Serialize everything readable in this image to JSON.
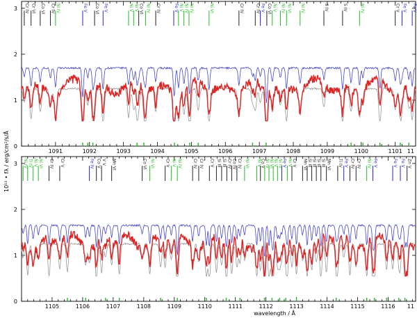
{
  "figure": {
    "ylabel": "10¹¹ • fλ / erg/cm²/s/Å",
    "xlabel": "wavelength / Å"
  },
  "colors": {
    "observed": "#dd2222",
    "model_a": "#4444cc",
    "model_b": "#999999",
    "ion_black": "#222222",
    "ion_blue": "#2222cc",
    "ion_green": "#22bb22",
    "marker_green": "#22bb22"
  },
  "chart_data": [
    {
      "type": "line",
      "panel": "top",
      "xlim": [
        1090.0,
        1101.6
      ],
      "ylim": [
        0,
        3.15
      ],
      "x_ticks": [
        "1091",
        "1092",
        "1093",
        "1094",
        "1095",
        "1096",
        "1097",
        "1098",
        "1099",
        "1100",
        "1101",
        "11"
      ],
      "y_ticks": [
        "0",
        "1",
        "2",
        "3"
      ],
      "series": [
        {
          "role": "model_a",
          "base": 1.7
        },
        {
          "role": "observed",
          "base": 1.3
        },
        {
          "role": "model_b",
          "base": 1.25
        }
      ],
      "ion_labels": [
        {
          "w": 1090.08,
          "t": "Cr IV",
          "c": "black"
        },
        {
          "w": 1090.28,
          "t": "Cr VI",
          "c": "black"
        },
        {
          "w": 1090.55,
          "t": "Co VI",
          "c": "black"
        },
        {
          "w": 1090.85,
          "t": "Cr IV",
          "c": "black"
        },
        {
          "w": 1091.0,
          "t": "Ni IV",
          "c": "green"
        },
        {
          "w": 1091.8,
          "t": "Fe V",
          "c": "blue"
        },
        {
          "w": 1092.15,
          "t": "Co VI",
          "c": "black"
        },
        {
          "w": 1092.4,
          "t": "Fe V",
          "c": "blue"
        },
        {
          "w": 1093.15,
          "t": "Ni V",
          "c": "green"
        },
        {
          "w": 1093.3,
          "t": "Ni V",
          "c": "green"
        },
        {
          "w": 1093.45,
          "t": "Co VI",
          "c": "black"
        },
        {
          "w": 1093.65,
          "t": "Ni IV",
          "c": "green"
        },
        {
          "w": 1093.95,
          "t": "Cr IV",
          "c": "black"
        },
        {
          "w": 1094.48,
          "t": "Fe V",
          "c": "blue"
        },
        {
          "w": 1094.62,
          "t": "Ni V",
          "c": "green"
        },
        {
          "w": 1094.78,
          "t": "Ni IV",
          "c": "green"
        },
        {
          "w": 1094.93,
          "t": "Ni IV",
          "c": "green"
        },
        {
          "w": 1095.52,
          "t": "Ni VI",
          "c": "green"
        },
        {
          "w": 1096.4,
          "t": "Cr IV",
          "c": "black"
        },
        {
          "w": 1096.88,
          "t": "Cr IV",
          "c": "black"
        },
        {
          "w": 1097.03,
          "t": "Fe V",
          "c": "blue"
        },
        {
          "w": 1097.22,
          "t": "Co VI",
          "c": "black"
        },
        {
          "w": 1097.38,
          "t": "Ni V",
          "c": "green"
        },
        {
          "w": 1097.62,
          "t": "Ni IV",
          "c": "green"
        },
        {
          "w": 1097.8,
          "t": "Ni VI",
          "c": "green"
        },
        {
          "w": 1098.2,
          "t": "Ni IV",
          "c": "green"
        },
        {
          "w": 1098.9,
          "t": "S IV",
          "c": "black"
        },
        {
          "w": 1099.45,
          "t": "S IV",
          "c": "black"
        },
        {
          "w": 1099.95,
          "t": "Ni IV",
          "c": "green"
        },
        {
          "w": 1101.0,
          "t": "Cr V",
          "c": "black"
        },
        {
          "w": 1101.2,
          "t": "Fe V",
          "c": "blue"
        },
        {
          "w": 1101.5,
          "t": "Fe V",
          "c": "blue"
        }
      ],
      "markers": [
        1091.8,
        1091.95,
        1092.1,
        1093.4,
        1093.6,
        1094.5,
        1094.95,
        1095.2,
        1096.8,
        1097.2,
        1099.7,
        1100.05,
        1100.55,
        1101.15,
        1101.4
      ]
    },
    {
      "type": "line",
      "panel": "bottom",
      "xlim": [
        1104.0,
        1116.9
      ],
      "ylim": [
        0,
        3.15
      ],
      "x_ticks": [
        "1105",
        "1106",
        "1107",
        "1108",
        "1109",
        "1110",
        "1111",
        "1112",
        "1113",
        "1114",
        "1115",
        "1116",
        "11"
      ],
      "y_ticks": [
        "0",
        "1",
        "2",
        "3"
      ],
      "series": [
        {
          "role": "model_a",
          "base": 1.65
        },
        {
          "role": "observed",
          "base": 1.32
        },
        {
          "role": "model_b",
          "base": 1.25
        }
      ],
      "ion_labels": [
        {
          "w": 1104.05,
          "t": "Ni IV",
          "c": "green"
        },
        {
          "w": 1104.2,
          "t": "Ti IV",
          "c": "green"
        },
        {
          "w": 1104.38,
          "t": "Ni V",
          "c": "green"
        },
        {
          "w": 1104.55,
          "t": "Ni VI",
          "c": "green"
        },
        {
          "w": 1104.9,
          "t": "Cr IV",
          "c": "black"
        },
        {
          "w": 1105.25,
          "t": "Cr V",
          "c": "black"
        },
        {
          "w": 1106.22,
          "t": "Fe IV",
          "c": "blue"
        },
        {
          "w": 1106.45,
          "t": "Co V",
          "c": "black"
        },
        {
          "w": 1106.62,
          "t": "V V",
          "c": "black"
        },
        {
          "w": 1106.95,
          "t": "Mn VI",
          "c": "black"
        },
        {
          "w": 1107.95,
          "t": "Co VI",
          "c": "black"
        },
        {
          "w": 1108.2,
          "t": "Ni VI",
          "c": "green"
        },
        {
          "w": 1108.7,
          "t": "Cr V",
          "c": "black"
        },
        {
          "w": 1108.9,
          "t": "Ni V",
          "c": "green"
        },
        {
          "w": 1109.1,
          "t": "Ni IV",
          "c": "green"
        },
        {
          "w": 1109.6,
          "t": "Cr IV",
          "c": "black"
        },
        {
          "w": 1109.8,
          "t": "Cr IV",
          "c": "black"
        },
        {
          "w": 1110.15,
          "t": "Cr V",
          "c": "black"
        },
        {
          "w": 1110.38,
          "t": "Si III",
          "c": "black"
        },
        {
          "w": 1110.55,
          "t": "Si III",
          "c": "black"
        },
        {
          "w": 1110.72,
          "t": "Cr IV",
          "c": "black"
        },
        {
          "w": 1110.88,
          "t": "Co IV",
          "c": "black"
        },
        {
          "w": 1111.05,
          "t": "Cr IV",
          "c": "black"
        },
        {
          "w": 1111.3,
          "t": "Ni VI",
          "c": "green"
        },
        {
          "w": 1111.7,
          "t": "Ni V",
          "c": "green"
        },
        {
          "w": 1111.82,
          "t": "Co V",
          "c": "black"
        },
        {
          "w": 1111.96,
          "t": "Ni IV",
          "c": "green"
        },
        {
          "w": 1112.1,
          "t": "Ni VI",
          "c": "green"
        },
        {
          "w": 1112.24,
          "t": "Ni V",
          "c": "green"
        },
        {
          "w": 1112.38,
          "t": "Ni IV",
          "c": "green"
        },
        {
          "w": 1112.52,
          "t": "Fe V",
          "c": "blue"
        },
        {
          "w": 1112.7,
          "t": "Ni V",
          "c": "green"
        },
        {
          "w": 1112.85,
          "t": "Cr V",
          "c": "black"
        },
        {
          "w": 1113.2,
          "t": "Mn VI",
          "c": "black"
        },
        {
          "w": 1113.35,
          "t": "Si III",
          "c": "black"
        },
        {
          "w": 1113.5,
          "t": "Si III",
          "c": "black"
        },
        {
          "w": 1113.65,
          "t": "Si III",
          "c": "black"
        },
        {
          "w": 1113.8,
          "t": "Si III",
          "c": "black"
        },
        {
          "w": 1113.98,
          "t": "Mn VI",
          "c": "black"
        },
        {
          "w": 1114.35,
          "t": "Ti IV",
          "c": "black"
        },
        {
          "w": 1114.55,
          "t": "Fe V",
          "c": "blue"
        },
        {
          "w": 1114.75,
          "t": "Cr IV",
          "c": "black"
        },
        {
          "w": 1114.95,
          "t": "Cr IV",
          "c": "black"
        },
        {
          "w": 1115.3,
          "t": "Ni IV",
          "c": "green"
        },
        {
          "w": 1115.5,
          "t": "Fe V",
          "c": "blue"
        },
        {
          "w": 1116.15,
          "t": "Fe V",
          "c": "blue"
        },
        {
          "w": 1116.4,
          "t": "Fe V",
          "c": "blue"
        },
        {
          "w": 1116.62,
          "t": "Zn V",
          "c": "black"
        }
      ],
      "markers": [
        1105.5,
        1106.1,
        1106.75,
        1107.2,
        1108.55,
        1109.1,
        1110.05,
        1110.7,
        1111.15,
        1111.95,
        1112.2,
        1112.45,
        1112.65,
        1113.0,
        1114.3,
        1115.3,
        1115.55,
        1115.95,
        1116.35,
        1116.55
      ]
    }
  ]
}
